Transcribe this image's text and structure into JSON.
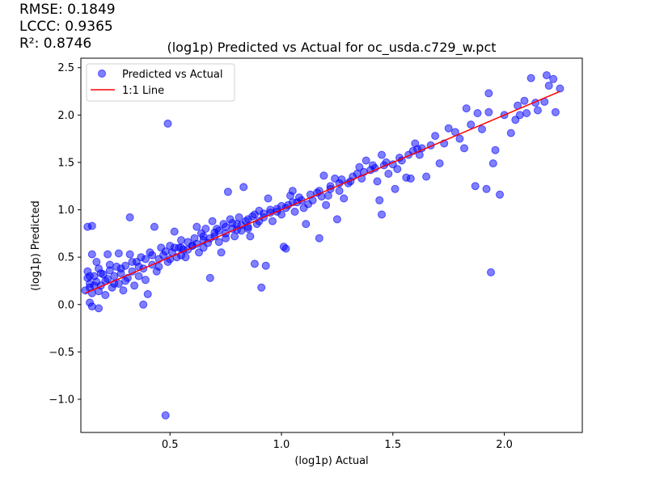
{
  "stats": {
    "rmse": "RMSE: 0.1849",
    "lccc": "LCCC: 0.9365",
    "r2": "R²: 0.8746"
  },
  "chart_data": {
    "type": "scatter",
    "title": "(log1p) Predicted vs Actual for oc_usda.c729_w.pct",
    "xlabel": "(log1p) Actual",
    "ylabel": "(log1p) Predicted",
    "xlim": [
      0.1,
      2.35
    ],
    "ylim": [
      -1.35,
      2.6
    ],
    "xticks": [
      0.5,
      1.0,
      1.5,
      2.0
    ],
    "xtick_labels": [
      "0.5",
      "1.0",
      "1.5",
      "2.0"
    ],
    "yticks": [
      -1.0,
      -0.5,
      0.0,
      0.5,
      1.0,
      1.5,
      2.0,
      2.5
    ],
    "ytick_labels": [
      "−1.0",
      "−0.5",
      "0.0",
      "0.5",
      "1.0",
      "1.5",
      "2.0",
      "2.5"
    ],
    "grid": false,
    "legend_position": "top-left",
    "series": [
      {
        "name": "Predicted vs Actual",
        "kind": "scatter",
        "color": "#0000ff",
        "points": [
          [
            0.13,
            0.82
          ],
          [
            0.15,
            0.83
          ],
          [
            0.15,
            0.53
          ],
          [
            0.13,
            0.35
          ],
          [
            0.14,
            0.22
          ],
          [
            0.14,
            0.02
          ],
          [
            0.15,
            -0.02
          ],
          [
            0.18,
            -0.04
          ],
          [
            0.12,
            0.15
          ],
          [
            0.13,
            0.28
          ],
          [
            0.14,
            0.18
          ],
          [
            0.15,
            0.12
          ],
          [
            0.16,
            0.3
          ],
          [
            0.17,
            0.24
          ],
          [
            0.18,
            0.38
          ],
          [
            0.18,
            0.14
          ],
          [
            0.19,
            0.2
          ],
          [
            0.2,
            0.32
          ],
          [
            0.21,
            0.1
          ],
          [
            0.22,
            0.53
          ],
          [
            0.22,
            0.27
          ],
          [
            0.23,
            0.36
          ],
          [
            0.24,
            0.18
          ],
          [
            0.25,
            0.3
          ],
          [
            0.26,
            0.4
          ],
          [
            0.27,
            0.54
          ],
          [
            0.27,
            0.22
          ],
          [
            0.28,
            0.33
          ],
          [
            0.29,
            0.15
          ],
          [
            0.3,
            0.41
          ],
          [
            0.31,
            0.28
          ],
          [
            0.32,
            0.92
          ],
          [
            0.32,
            0.53
          ],
          [
            0.33,
            0.35
          ],
          [
            0.34,
            0.2
          ],
          [
            0.35,
            0.45
          ],
          [
            0.36,
            0.3
          ],
          [
            0.37,
            0.5
          ],
          [
            0.38,
            0.0
          ],
          [
            0.38,
            0.38
          ],
          [
            0.39,
            0.26
          ],
          [
            0.4,
            0.11
          ],
          [
            0.41,
            0.55
          ],
          [
            0.42,
            0.42
          ],
          [
            0.43,
            0.82
          ],
          [
            0.44,
            0.35
          ],
          [
            0.45,
            0.48
          ],
          [
            0.46,
            0.6
          ],
          [
            0.47,
            0.52
          ],
          [
            0.48,
            -1.17
          ],
          [
            0.49,
            1.91
          ],
          [
            0.49,
            0.45
          ],
          [
            0.5,
            0.62
          ],
          [
            0.51,
            0.55
          ],
          [
            0.52,
            0.77
          ],
          [
            0.53,
            0.5
          ],
          [
            0.54,
            0.6
          ],
          [
            0.55,
            0.68
          ],
          [
            0.56,
            0.58
          ],
          [
            0.57,
            0.5
          ],
          [
            0.58,
            0.66
          ],
          [
            0.6,
            0.62
          ],
          [
            0.61,
            0.7
          ],
          [
            0.62,
            0.82
          ],
          [
            0.63,
            0.55
          ],
          [
            0.64,
            0.75
          ],
          [
            0.65,
            0.68
          ],
          [
            0.66,
            0.8
          ],
          [
            0.67,
            0.65
          ],
          [
            0.68,
            0.28
          ],
          [
            0.69,
            0.88
          ],
          [
            0.7,
            0.72
          ],
          [
            0.71,
            0.8
          ],
          [
            0.72,
            0.66
          ],
          [
            0.73,
            0.55
          ],
          [
            0.74,
            0.85
          ],
          [
            0.75,
            0.75
          ],
          [
            0.76,
            1.19
          ],
          [
            0.77,
            0.9
          ],
          [
            0.78,
            0.8
          ],
          [
            0.79,
            0.72
          ],
          [
            0.8,
            0.85
          ],
          [
            0.81,
            0.92
          ],
          [
            0.82,
            0.78
          ],
          [
            0.83,
            1.24
          ],
          [
            0.84,
            0.88
          ],
          [
            0.85,
            0.82
          ],
          [
            0.86,
            0.72
          ],
          [
            0.87,
            0.93
          ],
          [
            0.88,
            0.43
          ],
          [
            0.89,
            0.85
          ],
          [
            0.9,
            0.99
          ],
          [
            0.91,
            0.18
          ],
          [
            0.92,
            0.92
          ],
          [
            0.93,
            0.41
          ],
          [
            0.94,
            1.12
          ],
          [
            0.95,
            0.97
          ],
          [
            0.96,
            0.88
          ],
          [
            0.98,
            1.01
          ],
          [
            1.0,
            0.95
          ],
          [
            1.01,
            0.61
          ],
          [
            1.02,
            0.59
          ],
          [
            1.03,
            1.05
          ],
          [
            1.04,
            1.15
          ],
          [
            1.05,
            1.2
          ],
          [
            1.06,
            0.98
          ],
          [
            1.07,
            1.08
          ],
          [
            1.08,
            1.13
          ],
          [
            1.1,
            1.02
          ],
          [
            1.11,
            0.85
          ],
          [
            1.12,
            1.06
          ],
          [
            1.14,
            1.1
          ],
          [
            1.16,
            1.18
          ],
          [
            1.17,
            0.7
          ],
          [
            1.18,
            1.14
          ],
          [
            1.19,
            1.36
          ],
          [
            1.2,
            1.05
          ],
          [
            1.21,
            1.15
          ],
          [
            1.22,
            1.25
          ],
          [
            1.24,
            1.33
          ],
          [
            1.25,
            0.9
          ],
          [
            1.26,
            1.2
          ],
          [
            1.27,
            1.32
          ],
          [
            1.28,
            1.12
          ],
          [
            1.3,
            1.28
          ],
          [
            1.32,
            1.35
          ],
          [
            1.34,
            1.38
          ],
          [
            1.35,
            1.45
          ],
          [
            1.36,
            1.33
          ],
          [
            1.38,
            1.52
          ],
          [
            1.4,
            1.42
          ],
          [
            1.41,
            1.47
          ],
          [
            1.43,
            1.3
          ],
          [
            1.44,
            1.1
          ],
          [
            1.45,
            0.95
          ],
          [
            1.45,
            1.58
          ],
          [
            1.47,
            1.5
          ],
          [
            1.48,
            1.38
          ],
          [
            1.5,
            1.48
          ],
          [
            1.51,
            1.22
          ],
          [
            1.52,
            1.43
          ],
          [
            1.54,
            1.52
          ],
          [
            1.56,
            1.34
          ],
          [
            1.58,
            1.33
          ],
          [
            1.59,
            1.62
          ],
          [
            1.6,
            1.7
          ],
          [
            1.62,
            1.58
          ],
          [
            1.63,
            1.65
          ],
          [
            1.65,
            1.35
          ],
          [
            1.67,
            1.68
          ],
          [
            1.69,
            1.78
          ],
          [
            1.71,
            1.49
          ],
          [
            1.73,
            1.7
          ],
          [
            1.75,
            1.86
          ],
          [
            1.78,
            1.82
          ],
          [
            1.8,
            1.75
          ],
          [
            1.82,
            1.65
          ],
          [
            1.83,
            2.07
          ],
          [
            1.85,
            1.9
          ],
          [
            1.87,
            1.25
          ],
          [
            1.88,
            2.02
          ],
          [
            1.9,
            1.85
          ],
          [
            1.92,
            1.22
          ],
          [
            1.93,
            2.03
          ],
          [
            1.93,
            2.23
          ],
          [
            1.94,
            0.34
          ],
          [
            1.95,
            1.49
          ],
          [
            1.96,
            1.63
          ],
          [
            1.98,
            1.16
          ],
          [
            2.0,
            2.0
          ],
          [
            2.03,
            1.81
          ],
          [
            2.05,
            1.95
          ],
          [
            2.06,
            2.1
          ],
          [
            2.07,
            2.0
          ],
          [
            2.09,
            2.15
          ],
          [
            2.1,
            2.02
          ],
          [
            2.12,
            2.39
          ],
          [
            2.14,
            2.13
          ],
          [
            2.15,
            2.05
          ],
          [
            2.18,
            2.14
          ],
          [
            2.19,
            2.42
          ],
          [
            2.2,
            2.31
          ],
          [
            2.22,
            2.38
          ],
          [
            2.23,
            2.03
          ],
          [
            2.25,
            2.28
          ],
          [
            0.14,
            0.3
          ],
          [
            0.16,
            0.2
          ],
          [
            0.17,
            0.45
          ],
          [
            0.19,
            0.33
          ],
          [
            0.21,
            0.25
          ],
          [
            0.23,
            0.42
          ],
          [
            0.25,
            0.22
          ],
          [
            0.28,
            0.38
          ],
          [
            0.3,
            0.25
          ],
          [
            0.33,
            0.45
          ],
          [
            0.36,
            0.4
          ],
          [
            0.39,
            0.48
          ],
          [
            0.42,
            0.52
          ],
          [
            0.45,
            0.4
          ],
          [
            0.48,
            0.56
          ],
          [
            0.52,
            0.6
          ],
          [
            0.55,
            0.52
          ],
          [
            0.58,
            0.58
          ],
          [
            0.62,
            0.64
          ],
          [
            0.65,
            0.72
          ],
          [
            0.68,
            0.7
          ],
          [
            0.72,
            0.78
          ],
          [
            0.75,
            0.82
          ],
          [
            0.78,
            0.86
          ],
          [
            0.82,
            0.84
          ],
          [
            0.85,
            0.9
          ],
          [
            0.88,
            0.95
          ],
          [
            0.92,
            0.96
          ],
          [
            0.95,
            1.0
          ],
          [
            0.98,
            0.98
          ],
          [
            1.02,
            1.02
          ],
          [
            1.05,
            1.08
          ],
          [
            1.09,
            1.1
          ],
          [
            1.13,
            1.16
          ],
          [
            1.17,
            1.2
          ],
          [
            1.22,
            1.22
          ],
          [
            1.26,
            1.28
          ],
          [
            1.31,
            1.3
          ],
          [
            1.37,
            1.4
          ],
          [
            1.42,
            1.44
          ],
          [
            1.46,
            1.47
          ],
          [
            1.53,
            1.55
          ],
          [
            1.57,
            1.58
          ],
          [
            1.61,
            1.64
          ],
          [
            0.5,
            0.48
          ],
          [
            0.6,
            0.62
          ],
          [
            0.7,
            0.76
          ],
          [
            0.8,
            0.79
          ],
          [
            0.9,
            0.88
          ],
          [
            1.0,
            1.04
          ],
          [
            0.55,
            0.6
          ],
          [
            0.65,
            0.6
          ],
          [
            0.75,
            0.7
          ],
          [
            0.85,
            0.8
          ]
        ]
      },
      {
        "name": "1:1 Line",
        "kind": "line",
        "color": "#ff0000",
        "points": [
          [
            0.12,
            0.12
          ],
          [
            2.25,
            2.25
          ]
        ]
      }
    ]
  }
}
